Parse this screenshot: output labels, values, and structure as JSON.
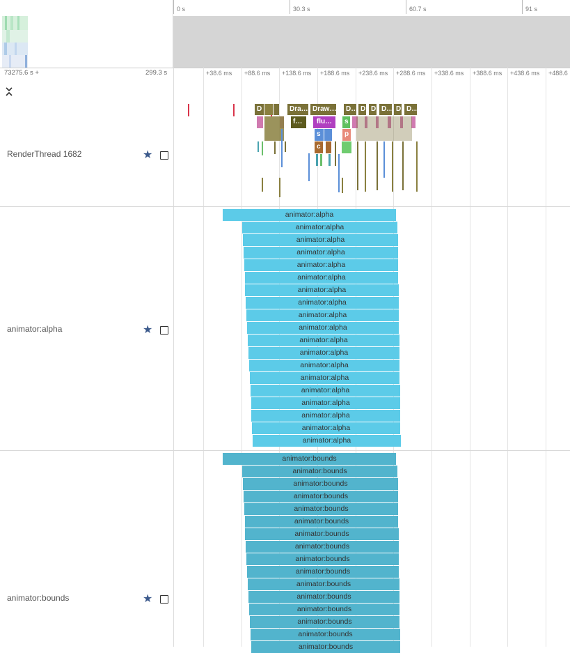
{
  "overview": {
    "ticks": [
      "0 s",
      "30.3 s",
      "60.7 s",
      "91 s"
    ]
  },
  "time_header": {
    "offset_label": "73275.6 s +",
    "span_label": "299.3 s",
    "collapse_icon": "chevron-updown-icon",
    "ticks": [
      "+38.6 ms",
      "+88.6 ms",
      "+138.6 ms",
      "+188.6 ms",
      "+238.6 ms",
      "+288.6 ms",
      "+338.6 ms",
      "+388.6 ms",
      "+438.6 ms",
      "+488.6"
    ]
  },
  "tracks": [
    {
      "name": "RenderThread 1682",
      "star_icon": "star-icon",
      "checkbox_icon": "checkbox-icon"
    },
    {
      "name": "animator:alpha",
      "star_icon": "star-icon",
      "checkbox_icon": "checkbox-icon"
    },
    {
      "name": "animator:bounds",
      "star_icon": "star-icon",
      "checkbox_icon": "checkbox-icon"
    }
  ],
  "render_thread": {
    "top_slices": [
      "D",
      "Dra…",
      "Draw…",
      "D…",
      "D",
      "D",
      "D…",
      "D",
      "D…"
    ],
    "second_slices": [
      "f…",
      "flu…",
      "s"
    ],
    "third_slices": [
      "s",
      "p"
    ],
    "fourth_slices": [
      "c"
    ]
  },
  "alpha_slices": [
    "animator:alpha",
    "animator:alpha",
    "animator:alpha",
    "animator:alpha",
    "animator:alpha",
    "animator:alpha",
    "animator:alpha",
    "animator:alpha",
    "animator:alpha",
    "animator:alpha",
    "animator:alpha",
    "animator:alpha",
    "animator:alpha",
    "animator:alpha",
    "animator:alpha",
    "animator:alpha",
    "animator:alpha",
    "animator:alpha",
    "animator:alpha"
  ],
  "bounds_slices": [
    "animator:bounds",
    "animator:bounds",
    "animator:bounds",
    "animator:bounds",
    "animator:bounds",
    "animator:bounds",
    "animator:bounds",
    "animator:bounds",
    "animator:bounds",
    "animator:bounds",
    "animator:bounds",
    "animator:bounds",
    "animator:bounds",
    "animator:bounds",
    "animator:bounds",
    "animator:bounds"
  ],
  "colors": {
    "alpha": "#5ccbe8",
    "bounds": "#52b4cd",
    "render_olive": "#7a7138",
    "overview_window": "#d5d5d5",
    "star": "#3c5a8c"
  }
}
